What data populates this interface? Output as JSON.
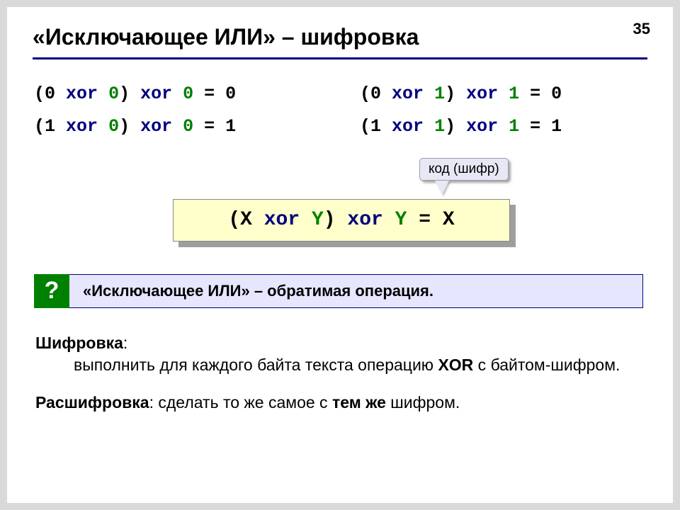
{
  "page_number": "35",
  "title": "«Исключающее ИЛИ» – шифровка",
  "colors": {
    "keyword": "#000080",
    "key_number": "#008000",
    "formula_bg": "#ffffcc",
    "note_bg": "#e6e6ff",
    "note_border": "#000080",
    "qmark_bg": "#008000",
    "tooltip_bg": "#e8e8f4",
    "slide_bg": "#ffffff",
    "page_bg": "#d9d9d9"
  },
  "fonts": {
    "mono": "Courier New",
    "sans": "Arial",
    "title_size_pt": 32,
    "expr_size_pt": 25,
    "formula_size_pt": 28,
    "body_size_pt": 23
  },
  "examples": {
    "left": [
      {
        "a": "0",
        "b": "0",
        "c": "0",
        "r": "0"
      },
      {
        "a": "1",
        "b": "0",
        "c": "0",
        "r": "1"
      }
    ],
    "right": [
      {
        "a": "0",
        "b": "1",
        "c": "1",
        "r": "0"
      },
      {
        "a": "1",
        "b": "1",
        "c": "1",
        "r": "1"
      }
    ],
    "op": "xor"
  },
  "tooltip": "код (шифр)",
  "formula": {
    "lhs_a": "X",
    "lhs_b": "Y",
    "rhs_b": "Y",
    "result": "X",
    "op": "xor"
  },
  "qmark": "?",
  "note": "«Исключающее ИЛИ» – обратимая операция.",
  "p1_lead": "Шифровка",
  "p1_body_a": "выполнить для каждого байта текста операцию ",
  "p1_code": "XOR",
  "p1_body_b": " с байтом-шифром.",
  "p2_lead": "Расшифровка",
  "p2_body_a": ": сделать то же самое с ",
  "p2_bold": "тем же",
  "p2_body_b": " шифром."
}
